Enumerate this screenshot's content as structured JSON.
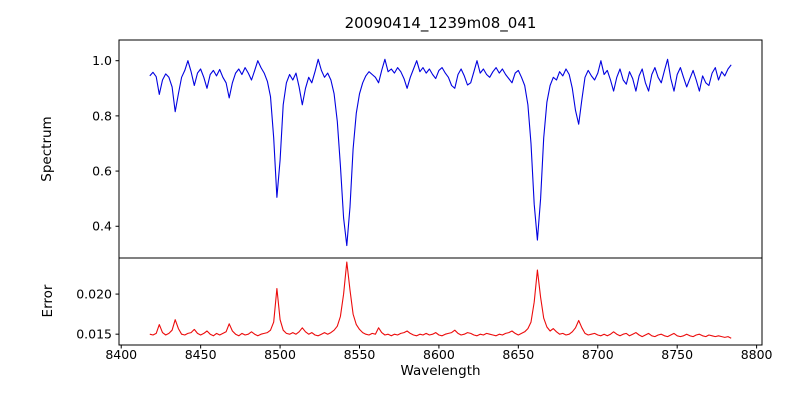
{
  "chart_data": {
    "type": "line",
    "title": "20090414_1239m08_041",
    "xlabel": "Wavelength",
    "grid": false,
    "legend": null,
    "xlim": [
      8398.6,
      8803.4
    ],
    "xtick_values": [
      8400,
      8450,
      8500,
      8550,
      8600,
      8650,
      8700,
      8750,
      8800
    ],
    "xtick_labels": [
      "8400",
      "8450",
      "8500",
      "8550",
      "8600",
      "8650",
      "8700",
      "8750",
      "8800"
    ],
    "x_start": 8418,
    "x_step": 2,
    "x": [
      8418,
      8420,
      8422,
      8424,
      8426,
      8428,
      8430,
      8432,
      8434,
      8436,
      8438,
      8440,
      8442,
      8444,
      8446,
      8448,
      8450,
      8452,
      8454,
      8456,
      8458,
      8460,
      8462,
      8464,
      8466,
      8468,
      8470,
      8472,
      8474,
      8476,
      8478,
      8480,
      8482,
      8484,
      8486,
      8488,
      8490,
      8492,
      8494,
      8496,
      8498,
      8500,
      8502,
      8504,
      8506,
      8508,
      8510,
      8512,
      8514,
      8516,
      8518,
      8520,
      8522,
      8524,
      8526,
      8528,
      8530,
      8532,
      8534,
      8536,
      8538,
      8540,
      8542,
      8544,
      8546,
      8548,
      8550,
      8552,
      8554,
      8556,
      8558,
      8560,
      8562,
      8564,
      8566,
      8568,
      8570,
      8572,
      8574,
      8576,
      8578,
      8580,
      8582,
      8584,
      8586,
      8588,
      8590,
      8592,
      8594,
      8596,
      8598,
      8600,
      8602,
      8604,
      8606,
      8608,
      8610,
      8612,
      8614,
      8616,
      8618,
      8620,
      8622,
      8624,
      8626,
      8628,
      8630,
      8632,
      8634,
      8636,
      8638,
      8640,
      8642,
      8644,
      8646,
      8648,
      8650,
      8652,
      8654,
      8656,
      8658,
      8660,
      8662,
      8664,
      8666,
      8668,
      8670,
      8672,
      8674,
      8676,
      8678,
      8680,
      8682,
      8684,
      8686,
      8688,
      8690,
      8692,
      8694,
      8696,
      8698,
      8700,
      8702,
      8704,
      8706,
      8708,
      8710,
      8712,
      8714,
      8716,
      8718,
      8720,
      8722,
      8724,
      8726,
      8728,
      8730,
      8732,
      8734,
      8736,
      8738,
      8740,
      8742,
      8744,
      8746,
      8748,
      8750,
      8752,
      8754,
      8756,
      8758,
      8760,
      8762,
      8764,
      8766,
      8768,
      8770,
      8772,
      8774,
      8776,
      8778,
      8780,
      8782,
      8784
    ],
    "absorption_line_centers": [
      8424,
      8434,
      8446,
      8468,
      8498,
      8514,
      8542,
      8580,
      8610,
      8646,
      8662,
      8688
    ],
    "panels": [
      {
        "name": "spectrum",
        "ylabel": "Spectrum",
        "color": "#0202e0",
        "ylim": [
          0.285,
          1.075
        ],
        "ytick_values": [
          0.4,
          0.6,
          0.8,
          1.0
        ],
        "ytick_labels": [
          "0.4",
          "0.6",
          "0.8",
          "1.0"
        ],
        "values": [
          0.945,
          0.958,
          0.942,
          0.878,
          0.93,
          0.952,
          0.94,
          0.905,
          0.815,
          0.88,
          0.94,
          0.965,
          1.0,
          0.96,
          0.91,
          0.955,
          0.97,
          0.94,
          0.9,
          0.95,
          0.965,
          0.945,
          0.968,
          0.94,
          0.92,
          0.865,
          0.92,
          0.955,
          0.97,
          0.95,
          0.975,
          0.955,
          0.93,
          0.965,
          1.0,
          0.975,
          0.955,
          0.925,
          0.87,
          0.72,
          0.505,
          0.64,
          0.84,
          0.92,
          0.95,
          0.93,
          0.955,
          0.905,
          0.84,
          0.9,
          0.94,
          0.92,
          0.96,
          1.005,
          0.965,
          0.94,
          0.955,
          0.93,
          0.88,
          0.78,
          0.62,
          0.43,
          0.33,
          0.47,
          0.68,
          0.81,
          0.88,
          0.92,
          0.945,
          0.96,
          0.95,
          0.94,
          0.92,
          0.965,
          1.005,
          0.96,
          0.97,
          0.955,
          0.975,
          0.96,
          0.935,
          0.9,
          0.94,
          0.97,
          1.0,
          0.96,
          0.975,
          0.955,
          0.97,
          0.95,
          0.935,
          0.965,
          0.975,
          0.955,
          0.94,
          0.91,
          0.9,
          0.95,
          0.97,
          0.945,
          0.912,
          0.92,
          0.96,
          1.0,
          0.955,
          0.97,
          0.95,
          0.94,
          0.96,
          0.975,
          0.955,
          0.97,
          0.95,
          0.935,
          0.92,
          0.955,
          0.965,
          0.94,
          0.91,
          0.84,
          0.7,
          0.48,
          0.35,
          0.5,
          0.72,
          0.85,
          0.91,
          0.94,
          0.93,
          0.96,
          0.945,
          0.97,
          0.95,
          0.9,
          0.82,
          0.77,
          0.86,
          0.94,
          0.965,
          0.945,
          0.93,
          0.955,
          1.0,
          0.95,
          0.965,
          0.93,
          0.89,
          0.94,
          0.97,
          0.93,
          0.915,
          0.96,
          0.935,
          0.89,
          0.945,
          0.97,
          0.92,
          0.89,
          0.95,
          0.975,
          0.94,
          0.92,
          0.965,
          1.005,
          0.935,
          0.89,
          0.95,
          0.975,
          0.94,
          0.905,
          0.935,
          0.965,
          0.93,
          0.89,
          0.945,
          0.92,
          0.91,
          0.955,
          0.975,
          0.93,
          0.96,
          0.945,
          0.97,
          0.985
        ]
      },
      {
        "name": "error",
        "ylabel": "Error",
        "color": "#ec0c0c",
        "ylim": [
          0.01365,
          0.0245
        ],
        "ytick_values": [
          0.015,
          0.02
        ],
        "ytick_labels": [
          "0.015",
          "0.020"
        ],
        "values": [
          0.015,
          0.0149,
          0.0151,
          0.0162,
          0.0152,
          0.0149,
          0.0151,
          0.0155,
          0.0168,
          0.0157,
          0.015,
          0.0149,
          0.0151,
          0.0152,
          0.0156,
          0.0151,
          0.0149,
          0.0151,
          0.0154,
          0.015,
          0.0148,
          0.0151,
          0.0149,
          0.0151,
          0.0153,
          0.0163,
          0.0154,
          0.015,
          0.0148,
          0.0151,
          0.0149,
          0.015,
          0.0153,
          0.015,
          0.0148,
          0.015,
          0.0151,
          0.0152,
          0.0155,
          0.0165,
          0.0207,
          0.0168,
          0.0155,
          0.0151,
          0.015,
          0.0152,
          0.015,
          0.0153,
          0.0158,
          0.0153,
          0.015,
          0.0152,
          0.0149,
          0.0148,
          0.015,
          0.0152,
          0.015,
          0.0152,
          0.0155,
          0.016,
          0.0172,
          0.02,
          0.024,
          0.0205,
          0.0175,
          0.0162,
          0.0156,
          0.0152,
          0.015,
          0.0149,
          0.0151,
          0.015,
          0.0158,
          0.0152,
          0.0149,
          0.015,
          0.0148,
          0.015,
          0.0149,
          0.0151,
          0.0152,
          0.0154,
          0.0151,
          0.0149,
          0.0148,
          0.015,
          0.0149,
          0.0151,
          0.0149,
          0.015,
          0.0152,
          0.0149,
          0.0148,
          0.015,
          0.0151,
          0.0152,
          0.0155,
          0.0151,
          0.0149,
          0.015,
          0.0152,
          0.0151,
          0.0149,
          0.0148,
          0.015,
          0.0149,
          0.0151,
          0.015,
          0.0149,
          0.0148,
          0.015,
          0.0149,
          0.0151,
          0.0152,
          0.0154,
          0.0151,
          0.0149,
          0.0151,
          0.0153,
          0.0157,
          0.0165,
          0.019,
          0.023,
          0.0196,
          0.017,
          0.0159,
          0.0154,
          0.0157,
          0.0153,
          0.015,
          0.0151,
          0.0149,
          0.015,
          0.0153,
          0.0158,
          0.0167,
          0.0158,
          0.0151,
          0.0149,
          0.015,
          0.0151,
          0.0149,
          0.0148,
          0.015,
          0.0148,
          0.015,
          0.0153,
          0.015,
          0.0148,
          0.015,
          0.0151,
          0.0148,
          0.015,
          0.0152,
          0.0149,
          0.0147,
          0.0149,
          0.0151,
          0.0148,
          0.0147,
          0.0149,
          0.015,
          0.0148,
          0.0147,
          0.0149,
          0.0151,
          0.0148,
          0.0147,
          0.0148,
          0.015,
          0.0148,
          0.0147,
          0.0149,
          0.015,
          0.0148,
          0.0147,
          0.0149,
          0.0148,
          0.0147,
          0.0148,
          0.0147,
          0.0146,
          0.0147,
          0.0145
        ]
      }
    ]
  }
}
